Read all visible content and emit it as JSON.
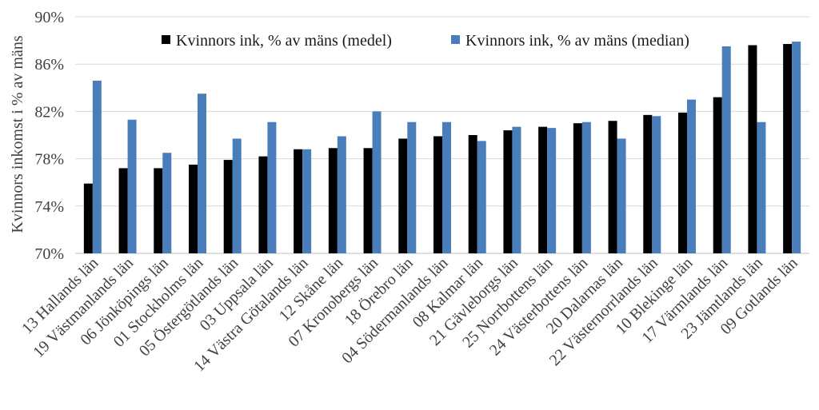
{
  "chart_data": {
    "type": "bar",
    "title": "",
    "xlabel": "",
    "ylabel": "Kvinnors inkomst i % av mäns",
    "ylim": [
      70,
      90
    ],
    "yticks": [
      "70%",
      "74%",
      "78%",
      "82%",
      "86%",
      "90%"
    ],
    "ytick_values": [
      70,
      74,
      78,
      82,
      86,
      90
    ],
    "grid": true,
    "legend_position": "top-center",
    "categories": [
      "13 Hallands län",
      "19 Västmanlands län",
      "06 Jönköpings län",
      "01 Stockholms län",
      "05 Östergötlands län",
      "03 Uppsala län",
      "14 Västra Götalands län",
      "12 Skåne län",
      "07 Kronobergs län",
      "18 Örebro län",
      "04 Södermanlands län",
      "08 Kalmar län",
      "21 Gävleborgs län",
      "25 Norrbottens län",
      "24 Västerbottens län",
      "20 Dalarnas län",
      "22 Västernorrlands län",
      "10 Blekinge län",
      "17 Värmlands län",
      "23 Jämtlands län",
      "09 Gotlands län"
    ],
    "series": [
      {
        "name": "Kvinnors ink, % av mäns (medel)",
        "color": "#000000",
        "values": [
          75.9,
          77.2,
          77.2,
          77.5,
          77.9,
          78.2,
          78.8,
          78.9,
          78.9,
          79.7,
          79.9,
          80.0,
          80.4,
          80.7,
          81.0,
          81.2,
          81.7,
          81.9,
          83.2,
          87.6,
          87.7
        ]
      },
      {
        "name": "Kvinnors ink, % av mäns (median)",
        "color": "#4a7ebb",
        "values": [
          84.6,
          81.3,
          78.5,
          83.5,
          79.7,
          81.1,
          78.8,
          79.9,
          82.0,
          81.1,
          81.1,
          79.5,
          80.7,
          80.6,
          81.1,
          79.7,
          81.6,
          83.0,
          87.5,
          81.1,
          87.9
        ]
      }
    ]
  }
}
